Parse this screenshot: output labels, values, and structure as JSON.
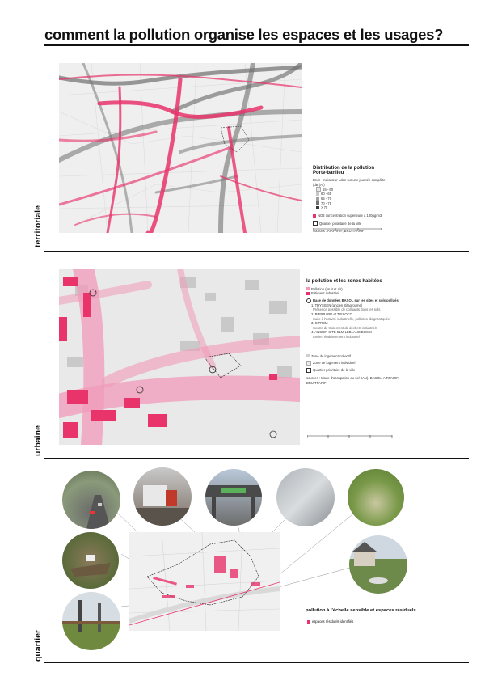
{
  "page": {
    "title": "comment la pollution organise les espaces et les usages?"
  },
  "territoriale": {
    "section_label": "territoriale",
    "legend": {
      "title": "Distribution de la pollution Porte-banlieu",
      "subtitle": "Bruit - Indicateur Lden sur une journée complète (dB (A))",
      "classes": [
        "55 - 60",
        "60 - 65",
        "65 - 70",
        "70 - 75",
        "> 75"
      ],
      "no2": "NO2 concentration supérieure à 100µg/m3",
      "perimeter": "Quartier prioritaire de la ville",
      "source": "sources : AIRPARIF, BRUITPARIF"
    },
    "colors": {
      "pink": "#e8336b",
      "grey": "#6f6f6f"
    }
  },
  "urbaine": {
    "section_label": "urbaine",
    "legend": {
      "title": "la pollution et les zones habitées",
      "items": [
        "Pollution (bruit et air)",
        "Bâtiment industriel"
      ],
      "basol_title": "Base de données BASOL sur les sites et sols pollués",
      "basol_entries": [
        "1. THYSSEN (ancien Sitagroume)",
        "Présence possible de polluants dans les sols",
        "2. PIERRARD et TISSOCO",
        "Suite à l'activité industrielle, pollution diagnostiquée",
        "3. SITREM",
        "Centre de traitement de déchets industriels",
        "4. ANCIEN SITE ELM LEBLANC BOSCH",
        "Ancien établissement industriel"
      ],
      "zones": [
        "Zone de logement collectif",
        "Zone de logement individuel",
        "Quartier prioritaire de la ville"
      ],
      "source": "sources : Mode d'occupation du sol (IAU), BASOL, AIRPARIF, BRUITPARIF"
    }
  },
  "quartier": {
    "section_label": "quartier",
    "legend_title": "pollution à l'échelle sensible et espaces résiduels",
    "legend_item": "espaces résiduels identifiés",
    "photos": [
      "photo-road-traffic",
      "photo-truck",
      "photo-bridge",
      "photo-graffiti-wall",
      "photo-grass",
      "photo-rubble",
      "photo-roadside",
      "photo-trees"
    ]
  }
}
